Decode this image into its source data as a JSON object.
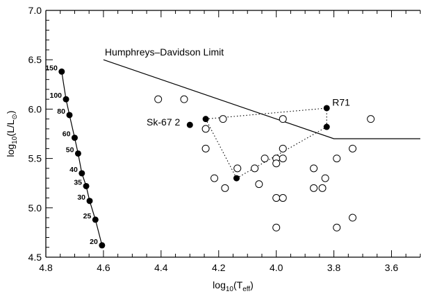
{
  "chart_data": {
    "type": "scatter",
    "xlabel": "log10(Teff)",
    "ylabel": "log10(L/L⊙)",
    "xlim": [
      4.8,
      3.5
    ],
    "ylim": [
      4.5,
      7.0
    ],
    "x_ticks": [
      "4.8",
      "4.6",
      "4.4",
      "4.2",
      "4.0",
      "3.8",
      "3.6"
    ],
    "y_ticks": [
      "4.5",
      "5.0",
      "5.5",
      "6.0",
      "6.5",
      "7.0"
    ],
    "zams": {
      "points": [
        {
          "label": "150",
          "x": 4.745,
          "y": 6.38
        },
        {
          "label": "100",
          "x": 4.73,
          "y": 6.1
        },
        {
          "label": "80",
          "x": 4.718,
          "y": 5.94
        },
        {
          "label": "60",
          "x": 4.7,
          "y": 5.71
        },
        {
          "label": "50",
          "x": 4.688,
          "y": 5.55
        },
        {
          "label": "40",
          "x": 4.675,
          "y": 5.35
        },
        {
          "label": "35",
          "x": 4.66,
          "y": 5.22
        },
        {
          "label": "30",
          "x": 4.648,
          "y": 5.07
        },
        {
          "label": "25",
          "x": 4.628,
          "y": 4.88
        },
        {
          "label": "20",
          "x": 4.605,
          "y": 4.62
        }
      ]
    },
    "hd_limit": {
      "label": "Humphreys–Davidson Limit",
      "points": [
        [
          4.6,
          6.5
        ],
        [
          3.8,
          5.7
        ],
        [
          3.5,
          5.7
        ]
      ]
    },
    "open_points": [
      [
        4.41,
        6.1
      ],
      [
        4.32,
        6.1
      ],
      [
        4.245,
        5.8
      ],
      [
        4.245,
        5.6
      ],
      [
        4.185,
        5.9
      ],
      [
        4.215,
        5.3
      ],
      [
        4.178,
        5.2
      ],
      [
        4.135,
        5.4
      ],
      [
        4.075,
        5.4
      ],
      [
        4.06,
        5.24
      ],
      [
        4.04,
        5.5
      ],
      [
        4.0,
        5.5
      ],
      [
        4.0,
        5.45
      ],
      [
        3.977,
        5.6
      ],
      [
        3.977,
        5.5
      ],
      [
        3.977,
        5.9
      ],
      [
        4.0,
        5.1
      ],
      [
        3.977,
        5.1
      ],
      [
        4.0,
        4.8
      ],
      [
        3.87,
        5.4
      ],
      [
        3.87,
        5.2
      ],
      [
        3.84,
        5.2
      ],
      [
        3.83,
        5.3
      ],
      [
        3.79,
        5.5
      ],
      [
        3.79,
        4.8
      ],
      [
        3.735,
        5.6
      ],
      [
        3.735,
        4.9
      ],
      [
        3.672,
        5.9
      ]
    ],
    "filled_points": [
      [
        4.3,
        5.84
      ],
      [
        4.245,
        5.9
      ],
      [
        4.138,
        5.3
      ],
      [
        3.825,
        6.01
      ],
      [
        3.825,
        5.82
      ]
    ],
    "annotations": [
      {
        "text": "Sk-67 2",
        "x": 4.3,
        "y": 5.87
      },
      {
        "text": "R71",
        "x": 3.825,
        "y": 6.05
      }
    ],
    "dotted_lines": [
      [
        [
          4.245,
          5.9
        ],
        [
          3.825,
          6.01
        ]
      ],
      [
        [
          4.245,
          5.9
        ],
        [
          4.138,
          5.3
        ]
      ],
      [
        [
          4.138,
          5.3
        ],
        [
          3.825,
          5.82
        ]
      ],
      [
        [
          3.825,
          5.82
        ],
        [
          3.825,
          6.01
        ]
      ]
    ],
    "grid": false,
    "legend": "none"
  }
}
